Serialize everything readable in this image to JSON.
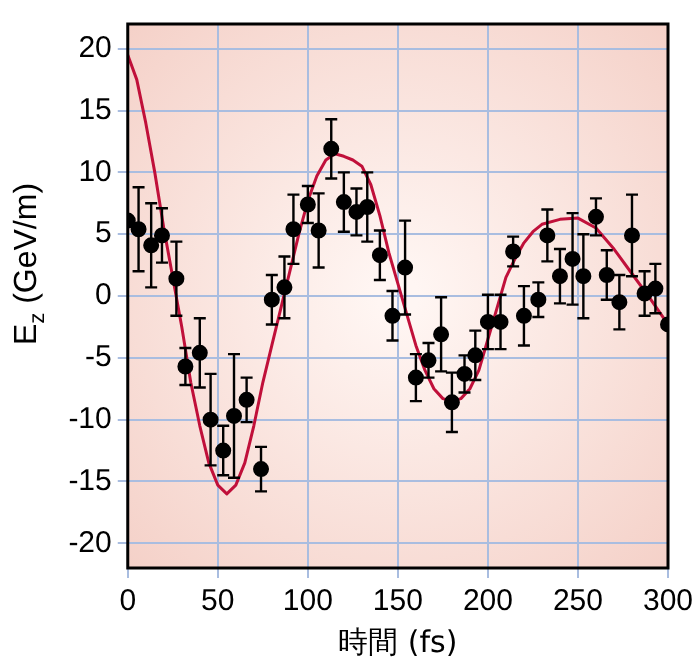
{
  "chart_data": {
    "type": "scatter",
    "xlabel": "時間 (fs)",
    "ylabel": "E$_{z}$ (GeV/m)",
    "xlim": [
      0,
      300
    ],
    "ylim": [
      -22,
      22
    ],
    "xticks": [
      0,
      50,
      100,
      150,
      200,
      250,
      300
    ],
    "yticks": [
      -20,
      -15,
      -10,
      -5,
      0,
      5,
      10,
      15,
      20
    ],
    "grid": true,
    "legend": false,
    "marker": "circle",
    "series": [
      {
        "color": "#000000",
        "x": [
          0,
          6,
          13,
          19,
          27,
          32,
          40,
          46,
          53,
          59,
          66,
          74,
          80,
          87,
          92,
          100,
          106,
          113,
          120,
          127,
          133,
          140,
          147,
          154,
          160,
          167,
          174,
          180,
          187,
          193,
          200,
          207,
          214,
          220,
          228,
          233,
          240,
          247,
          253,
          260,
          266,
          273,
          280,
          287,
          293,
          300
        ],
        "values": [
          6.1,
          5.4,
          4.1,
          4.9,
          1.4,
          -5.7,
          -4.6,
          -10,
          -12.5,
          -9.7,
          -8.4,
          -14,
          -0.3,
          0.7,
          5.4,
          7.4,
          5.3,
          11.9,
          7.6,
          6.8,
          7.2,
          3.3,
          -1.6,
          2.3,
          -6.6,
          -5.2,
          -3.1,
          -8.6,
          -6.3,
          -4.8,
          -2.1,
          -2.1,
          3.6,
          -1.6,
          -0.3,
          4.9,
          1.6,
          3,
          1.6,
          6.4,
          1.7,
          -0.5,
          4.9,
          0.2,
          0.6,
          -2.3
        ],
        "errors": [
          null,
          3.4,
          3.4,
          2.2,
          3,
          1.5,
          2.8,
          3.7,
          2,
          5,
          1.8,
          1.8,
          2,
          2.5,
          2.8,
          1.5,
          3,
          2.4,
          2.4,
          1.9,
          2.8,
          2,
          2,
          3.8,
          1.9,
          1.4,
          3,
          2.4,
          1.5,
          2,
          2.2,
          2.2,
          1.2,
          2.4,
          1.4,
          2.1,
          2.2,
          3.7,
          3.4,
          1.5,
          2,
          2.2,
          3.3,
          1.8,
          2,
          null
        ]
      },
      {
        "type": "line",
        "color": "#c0103a",
        "marker": "none",
        "x": [
          0,
          5,
          10,
          15,
          20,
          25,
          30,
          35,
          40,
          45,
          50,
          55,
          60,
          65,
          70,
          75,
          80,
          85,
          90,
          95,
          100,
          105,
          110,
          115,
          120,
          125,
          130,
          135,
          140,
          145,
          150,
          155,
          160,
          165,
          170,
          175,
          180,
          185,
          190,
          195,
          200,
          205,
          210,
          215,
          220,
          225,
          230,
          240,
          250,
          260,
          270,
          280,
          290,
          300
        ],
        "values": [
          19.5,
          17.5,
          14,
          10,
          5.5,
          1.5,
          -2.5,
          -7,
          -10.5,
          -13.5,
          -15.3,
          -16,
          -15.3,
          -13.5,
          -10.5,
          -7,
          -4,
          -1,
          2,
          5,
          7.7,
          9.7,
          11,
          11.5,
          11.3,
          11,
          10.5,
          9,
          6.5,
          3.5,
          1,
          -1.5,
          -4,
          -6,
          -7.5,
          -8.3,
          -8.5,
          -8.3,
          -7.5,
          -6,
          -3.5,
          -1,
          1.5,
          3,
          4.3,
          5.2,
          5.8,
          6.2,
          6.3,
          5.5,
          3.8,
          1.8,
          -0.2,
          -2.3
        ]
      }
    ]
  }
}
